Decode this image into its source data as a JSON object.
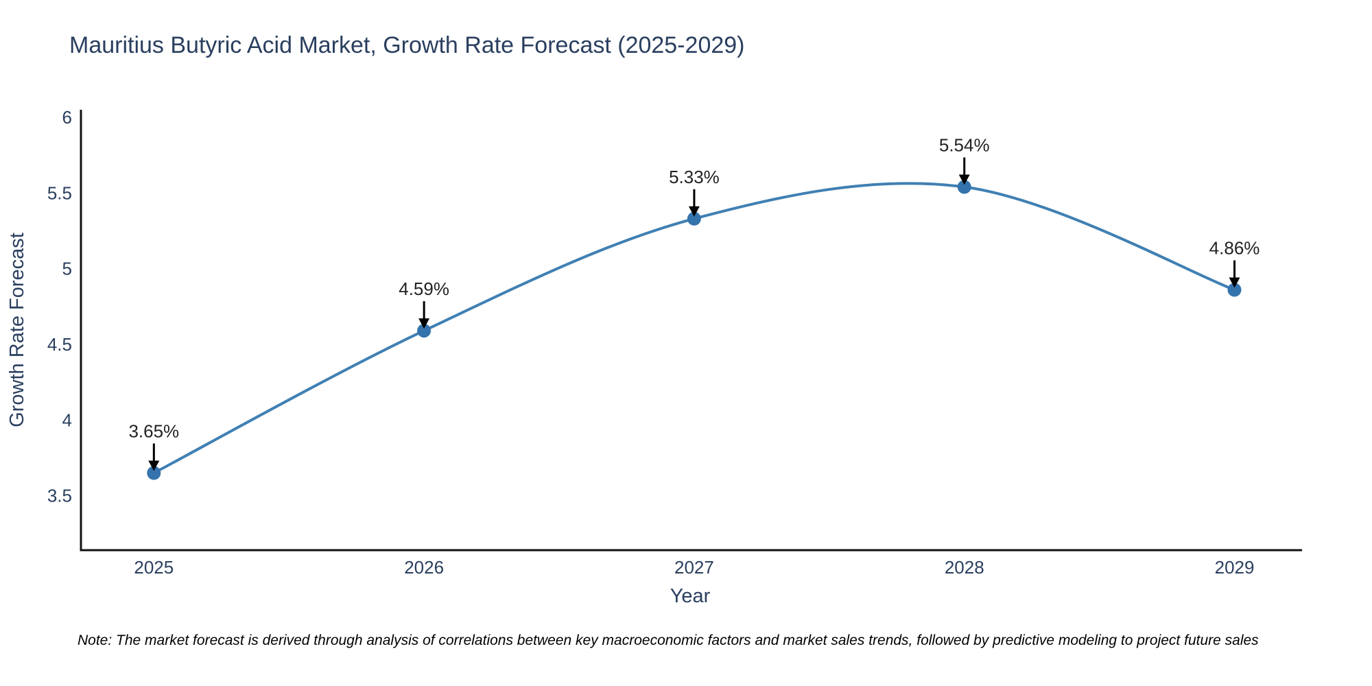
{
  "note": "Note: The market forecast is derived through analysis of correlations between key macroeconomic factors and market sales trends, followed by predictive modeling to project future sales",
  "chart_data": {
    "type": "line",
    "title": "Mauritius Butyric Acid Market, Growth Rate Forecast (2025-2029)",
    "xlabel": "Year",
    "ylabel": "Growth Rate Forecast",
    "x": [
      2025,
      2026,
      2027,
      2028,
      2029
    ],
    "y": [
      3.65,
      4.59,
      5.33,
      5.54,
      4.86
    ],
    "point_labels": [
      "3.65%",
      "4.59%",
      "5.33%",
      "5.54%",
      "4.86%"
    ],
    "xtick_labels": [
      "2025",
      "2026",
      "2027",
      "2028",
      "2029"
    ],
    "yticks": [
      3.5,
      4,
      4.5,
      5,
      5.5,
      6
    ],
    "ytick_labels": [
      "3.5",
      "4",
      "4.5",
      "5",
      "5.5",
      "6"
    ],
    "xlim": [
      2024.73,
      2029.25
    ],
    "ylim": [
      3.14,
      6.05
    ],
    "line_shape": "spline",
    "grid": false,
    "legend": "none",
    "annotations_have_arrows": true,
    "colors": {
      "background": "#ffffff",
      "line": "#4080b3",
      "marker": "#3573ad",
      "arrow": "#000000",
      "axis": "#111111",
      "title_text": "#2a3f5f",
      "tick_text": "#2a3f5f",
      "annotation_text": "#222222",
      "note_text": "#000000"
    }
  }
}
